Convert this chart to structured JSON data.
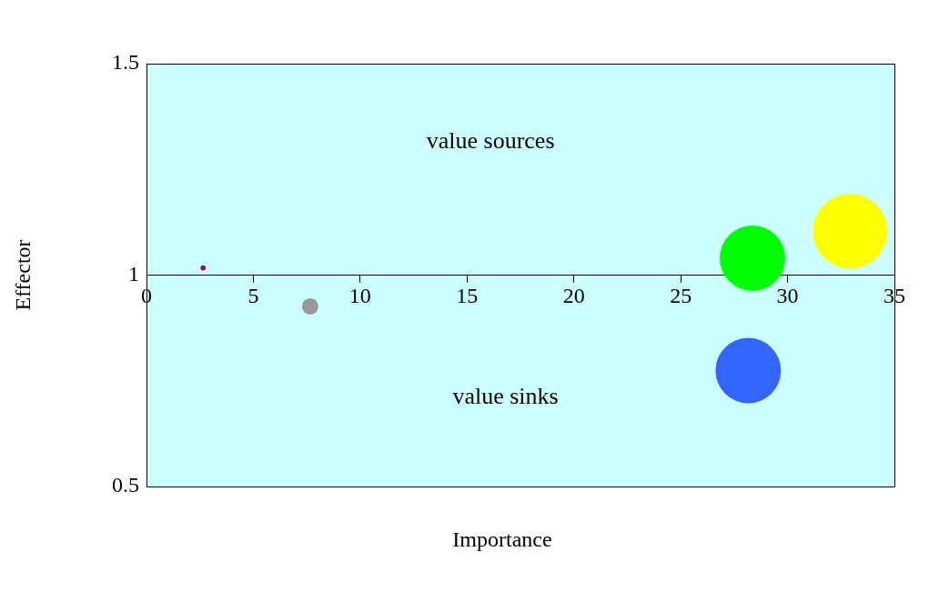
{
  "chart_data": {
    "type": "bubble",
    "xlabel": "Importance",
    "ylabel": "Effector",
    "annotations": [
      "value sources",
      "value sinks"
    ],
    "x": [
      2.65,
      7.66,
      28.36,
      32.93,
      28.16
    ],
    "values": [
      1.017,
      0.926,
      1.04,
      1.104,
      0.774
    ],
    "sizes": [
      0.005,
      0.048,
      0.77,
      1,
      0.77
    ],
    "colors": [
      "#990099",
      "#999999",
      "#00ff00",
      "#ffff00",
      "#3366ff"
    ],
    "xlim": [
      0,
      35
    ],
    "xticks": [
      0,
      5,
      10,
      15,
      20,
      25,
      30,
      35
    ],
    "ylim": [
      0.5,
      1.5
    ],
    "yticks": [
      0.5,
      1,
      1.5
    ],
    "grid": false,
    "legend": false
  }
}
